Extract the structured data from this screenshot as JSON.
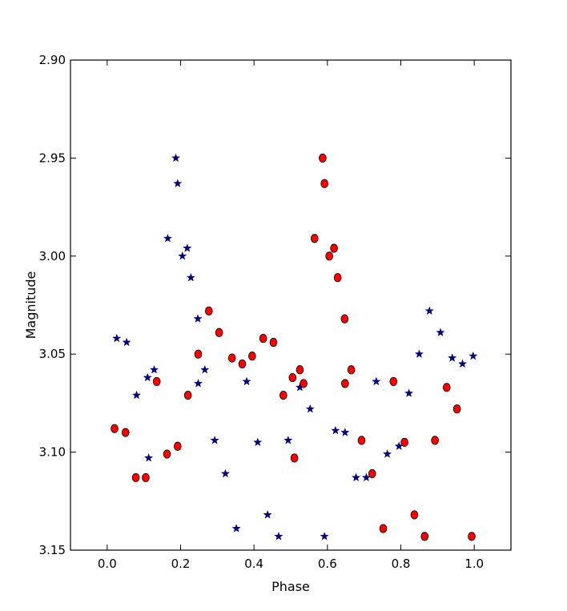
{
  "chart_data": {
    "type": "scatter",
    "title": "",
    "xlabel": "Phase",
    "ylabel": "Magnitude",
    "xlim": [
      -0.1,
      1.1
    ],
    "ylim": [
      3.15,
      2.9
    ],
    "y_inverted": true,
    "grid": false,
    "xticks": [
      0.0,
      0.2,
      0.4,
      0.6,
      0.8,
      1.0
    ],
    "xtick_labels": [
      "0.0",
      "0.2",
      "0.4",
      "0.6",
      "0.8",
      "1.0"
    ],
    "yticks": [
      2.9,
      2.95,
      3.0,
      3.05,
      3.1,
      3.15
    ],
    "ytick_labels": [
      "2.90",
      "2.95",
      "3.00",
      "3.05",
      "3.10",
      "3.15"
    ],
    "series": [
      {
        "marker": "star",
        "color": "#000080",
        "points": [
          [
            0.026,
            3.042
          ],
          [
            0.053,
            3.044
          ],
          [
            0.08,
            3.071
          ],
          [
            0.11,
            3.062
          ],
          [
            0.113,
            3.103
          ],
          [
            0.128,
            3.058
          ],
          [
            0.165,
            2.991
          ],
          [
            0.187,
            2.95
          ],
          [
            0.192,
            2.963
          ],
          [
            0.205,
            3.0
          ],
          [
            0.218,
            2.996
          ],
          [
            0.228,
            3.011
          ],
          [
            0.247,
            3.032
          ],
          [
            0.248,
            3.065
          ],
          [
            0.266,
            3.058
          ],
          [
            0.293,
            3.094
          ],
          [
            0.322,
            3.111
          ],
          [
            0.352,
            3.139
          ],
          [
            0.38,
            3.064
          ],
          [
            0.41,
            3.095
          ],
          [
            0.437,
            3.132
          ],
          [
            0.467,
            3.143
          ],
          [
            0.493,
            3.094
          ],
          [
            0.525,
            3.067
          ],
          [
            0.553,
            3.078
          ],
          [
            0.592,
            3.143
          ],
          [
            0.622,
            3.089
          ],
          [
            0.648,
            3.09
          ],
          [
            0.678,
            3.113
          ],
          [
            0.706,
            3.113
          ],
          [
            0.733,
            3.064
          ],
          [
            0.763,
            3.101
          ],
          [
            0.795,
            3.097
          ],
          [
            0.822,
            3.07
          ],
          [
            0.85,
            3.05
          ],
          [
            0.878,
            3.028
          ],
          [
            0.908,
            3.039
          ],
          [
            0.94,
            3.052
          ],
          [
            0.968,
            3.055
          ],
          [
            0.997,
            3.051
          ]
        ]
      },
      {
        "marker": "circle",
        "color": "#ff0000",
        "points": [
          [
            0.02,
            3.088
          ],
          [
            0.05,
            3.09
          ],
          [
            0.078,
            3.113
          ],
          [
            0.105,
            3.113
          ],
          [
            0.135,
            3.064
          ],
          [
            0.163,
            3.101
          ],
          [
            0.192,
            3.097
          ],
          [
            0.22,
            3.071
          ],
          [
            0.248,
            3.05
          ],
          [
            0.277,
            3.028
          ],
          [
            0.305,
            3.039
          ],
          [
            0.34,
            3.052
          ],
          [
            0.368,
            3.055
          ],
          [
            0.395,
            3.051
          ],
          [
            0.425,
            3.042
          ],
          [
            0.453,
            3.044
          ],
          [
            0.48,
            3.071
          ],
          [
            0.505,
            3.062
          ],
          [
            0.51,
            3.103
          ],
          [
            0.525,
            3.058
          ],
          [
            0.535,
            3.065
          ],
          [
            0.565,
            2.991
          ],
          [
            0.587,
            2.95
          ],
          [
            0.592,
            2.963
          ],
          [
            0.605,
            3.0
          ],
          [
            0.618,
            2.996
          ],
          [
            0.628,
            3.011
          ],
          [
            0.647,
            3.032
          ],
          [
            0.648,
            3.065
          ],
          [
            0.665,
            3.058
          ],
          [
            0.693,
            3.094
          ],
          [
            0.722,
            3.111
          ],
          [
            0.752,
            3.139
          ],
          [
            0.78,
            3.064
          ],
          [
            0.81,
            3.095
          ],
          [
            0.837,
            3.132
          ],
          [
            0.865,
            3.143
          ],
          [
            0.893,
            3.094
          ],
          [
            0.925,
            3.067
          ],
          [
            0.953,
            3.078
          ],
          [
            0.993,
            3.143
          ]
        ]
      }
    ]
  }
}
